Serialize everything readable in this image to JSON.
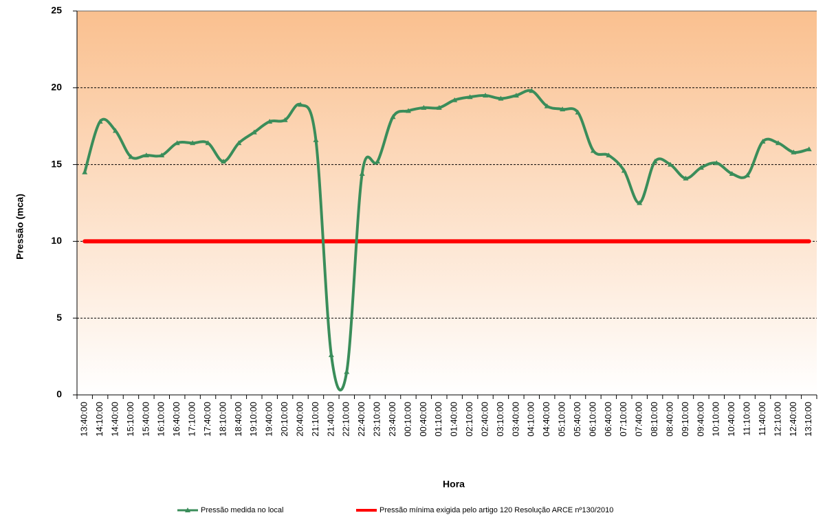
{
  "chart_data": {
    "type": "line",
    "x_label": "Hora",
    "y_label": "Pressão (mca)",
    "categories": [
      "13:40:00",
      "14:10:00",
      "14:40:00",
      "15:10:00",
      "15:40:00",
      "16:10:00",
      "16:40:00",
      "17:10:00",
      "17:40:00",
      "18:10:00",
      "18:40:00",
      "19:10:00",
      "19:40:00",
      "20:10:00",
      "20:40:00",
      "21:10:00",
      "21:40:00",
      "22:10:00",
      "22:40:00",
      "23:10:00",
      "23:40:00",
      "00:10:00",
      "00:40:00",
      "01:10:00",
      "01:40:00",
      "02:10:00",
      "02:40:00",
      "03:10:00",
      "03:40:00",
      "04:10:00",
      "04:40:00",
      "05:10:00",
      "05:40:00",
      "06:10:00",
      "06:40:00",
      "07:10:00",
      "07:40:00",
      "08:10:00",
      "08:40:00",
      "09:10:00",
      "09:40:00",
      "10:10:00",
      "10:40:00",
      "11:10:00",
      "11:40:00",
      "12:10:00",
      "12:40:00",
      "13:10:00"
    ],
    "series": [
      {
        "name": "Pressão medida no local",
        "color": "#3a8d5a",
        "values": [
          14.5,
          17.8,
          17.2,
          15.5,
          15.6,
          15.6,
          16.4,
          16.4,
          16.4,
          15.2,
          16.4,
          17.1,
          17.8,
          17.9,
          18.9,
          16.6,
          2.6,
          1.5,
          14.4,
          15.2,
          18.1,
          18.5,
          18.7,
          18.7,
          19.2,
          19.4,
          19.5,
          19.3,
          19.5,
          19.8,
          18.8,
          18.6,
          18.4,
          15.9,
          15.6,
          14.6,
          12.5,
          15.2,
          15.0,
          14.1,
          14.8,
          15.1,
          14.4,
          14.3,
          16.5,
          16.4,
          15.8,
          16.0
        ]
      },
      {
        "name": "Pressão mínima exigida pelo artigo 120 Resolução ARCE nº130/2010",
        "color": "#ff0000",
        "values": [
          10,
          10,
          10,
          10,
          10,
          10,
          10,
          10,
          10,
          10,
          10,
          10,
          10,
          10,
          10,
          10,
          10,
          10,
          10,
          10,
          10,
          10,
          10,
          10,
          10,
          10,
          10,
          10,
          10,
          10,
          10,
          10,
          10,
          10,
          10,
          10,
          10,
          10,
          10,
          10,
          10,
          10,
          10,
          10,
          10,
          10,
          10,
          10
        ]
      }
    ],
    "ylim": [
      0,
      25
    ],
    "yticks": [
      0,
      5,
      10,
      15,
      20,
      25
    ],
    "grid": true
  }
}
